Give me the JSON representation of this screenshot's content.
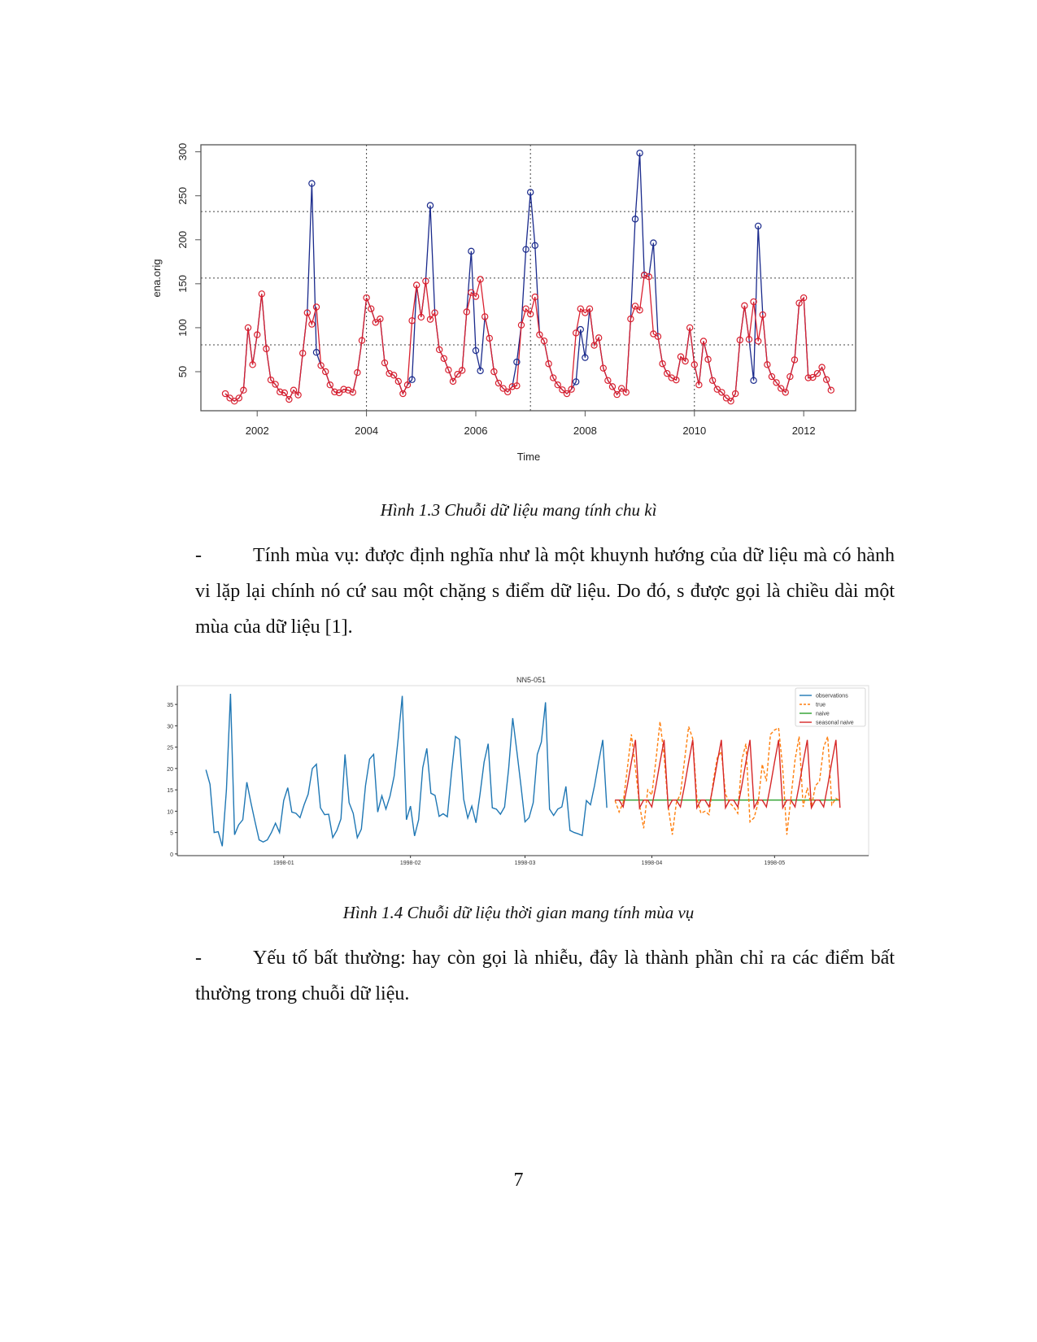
{
  "figure1": {
    "caption": "Hình 1.3 Chuỗi dữ liệu mang tính chu kì",
    "chart_data": {
      "type": "line",
      "xlabel": "Time",
      "ylabel": "ena.orig",
      "x_start": "2001-06",
      "x_frequency": "monthly",
      "xlim": [
        2000.97,
        2012.95
      ],
      "ylim": [
        5.6,
        308
      ],
      "x_ticks": [
        "2002",
        "2004",
        "2006",
        "2008",
        "2010",
        "2012"
      ],
      "y_ticks": [
        "50",
        "100",
        "150",
        "200",
        "250",
        "300"
      ],
      "reference_hlines": [
        232,
        156.5,
        80.5
      ],
      "reference_vlines": [
        2004,
        2007,
        2010
      ],
      "markers": "open circles",
      "series": [
        {
          "color": "#1a2a8c",
          "values": [
            25,
            20,
            16.5,
            20,
            29,
            100,
            58,
            92,
            138.5,
            76,
            40.6,
            35.6,
            27,
            26,
            18.5,
            29,
            23.5,
            71,
            117,
            264,
            72,
            57,
            50,
            35,
            27,
            26,
            30,
            29,
            26.5,
            49,
            85.5,
            134,
            121.5,
            106,
            110,
            60,
            48,
            46,
            39,
            25,
            35,
            41,
            148.5,
            112,
            153,
            239,
            117,
            75,
            65,
            52,
            39,
            47,
            51.5,
            118,
            187,
            74,
            51,
            112.5,
            88,
            50,
            37,
            31,
            27,
            33,
            61,
            103,
            189,
            254,
            193.5,
            92,
            85,
            59,
            43,
            35,
            29.4,
            25,
            30,
            38.5,
            98,
            66,
            121.5,
            80,
            88.5,
            54,
            40,
            33,
            24,
            31,
            26.5,
            110,
            223.5,
            298.5,
            160,
            158,
            196.5,
            90,
            59,
            48,
            43,
            40.6,
            67,
            62,
            100,
            58,
            35,
            84.7,
            64,
            40,
            30,
            26.5,
            20,
            16.5,
            25,
            86,
            125,
            86.8,
            40,
            215.6,
            114.7,
            58,
            44.4,
            37.6,
            31,
            26.5,
            44.4,
            63.5,
            128,
            134,
            43,
            43.5,
            48,
            55,
            41,
            29
          ]
        },
        {
          "color": "#d9202f",
          "values": [
            25,
            20,
            16.5,
            20,
            29,
            100,
            58,
            92,
            138.5,
            76,
            40.6,
            35.6,
            27,
            26,
            18.5,
            29,
            23.5,
            71,
            117,
            104,
            123.5,
            57,
            50,
            35,
            27,
            26,
            30,
            29,
            26.5,
            49,
            85.5,
            134,
            121.5,
            106,
            110,
            60,
            48,
            46,
            39,
            25,
            35,
            108,
            148.5,
            112,
            153,
            109.5,
            117,
            75,
            65,
            52,
            39,
            47,
            51.5,
            118,
            140,
            135.5,
            155,
            112.5,
            88,
            50,
            37,
            31,
            27,
            33,
            34,
            103,
            121.5,
            115.5,
            135,
            92,
            85,
            59,
            43,
            35,
            29.4,
            25,
            30,
            94,
            121.5,
            117,
            121.5,
            80,
            88.5,
            54,
            40,
            33,
            24,
            31,
            26.5,
            110,
            124.5,
            120,
            159.7,
            158,
            93,
            90,
            59,
            48,
            43,
            40.6,
            67,
            62,
            100,
            58,
            35,
            84.7,
            64,
            40,
            30,
            26.5,
            20,
            16.5,
            25,
            86,
            125,
            86.8,
            129.5,
            84.7,
            114.7,
            58,
            44.4,
            37.6,
            31,
            26.5,
            44.4,
            63.5,
            128,
            134,
            43,
            43.5,
            48,
            55,
            41,
            29
          ]
        }
      ]
    }
  },
  "paragraph1": {
    "bullet": "-",
    "text": "Tính mùa vụ: được định nghĩa như là một khuynh hướng của dữ liệu mà có hành vi lặp lại chính nó cứ sau một chặng s điểm dữ liệu. Do đó, s được gọi là chiều dài một mùa của dữ liệu [1]."
  },
  "figure2": {
    "caption": "Hình 1.4 Chuỗi dữ liệu thời gian mang tính mùa vụ",
    "chart_data": {
      "type": "line",
      "title": "NN5-051",
      "x_frequency": "daily",
      "xlim": [
        "1997-12-06",
        "1998-05-24"
      ],
      "ylim": [
        -0.4,
        39.4
      ],
      "x_ticks": [
        "1998-01",
        "1998-02",
        "1998-03",
        "1998-04",
        "1998-05"
      ],
      "y_ticks": [
        "0",
        "5",
        "10",
        "15",
        "20",
        "25",
        "30",
        "35"
      ],
      "legend_position": "top-right",
      "series": [
        {
          "name": "observations",
          "color": "#1f77b4",
          "style": "solid",
          "start": "1997-12-13",
          "values": [
            19.7,
            16.3,
            5,
            5.2,
            1.8,
            15,
            37.5,
            4.5,
            6.8,
            8,
            16.8,
            12,
            7.5,
            3.3,
            2.8,
            3.3,
            5,
            7.2,
            5,
            12.5,
            15.5,
            9.8,
            9.5,
            8.5,
            11.5,
            14,
            20,
            21,
            10.8,
            9.2,
            9.3,
            3.8,
            5.5,
            8.2,
            23.3,
            12,
            9.5,
            3.8,
            5.8,
            16,
            22.2,
            23.3,
            9.8,
            13.6,
            10.5,
            13.5,
            18.2,
            27,
            37,
            8,
            11.2,
            4.2,
            8,
            20.2,
            24.7,
            14.2,
            13.7,
            8.8,
            9.4,
            8.7,
            18.8,
            27.5,
            26.8,
            12.8,
            8.4,
            11.2,
            7.3,
            14,
            21.5,
            25.8,
            10.8,
            10.5,
            9.3,
            11,
            20,
            31.8,
            24,
            16,
            7.5,
            8.5,
            12,
            23.3,
            26.2,
            35.5,
            10.5,
            9,
            10.5,
            11,
            15.8,
            5.5,
            5,
            4.7,
            4.3,
            12.5,
            11.5,
            16,
            21.5,
            26.7,
            10.8
          ]
        },
        {
          "name": "true",
          "color": "#ff7f0e",
          "style": "dashed",
          "start": "1998-03-23",
          "values": [
            12.5,
            9.8,
            12,
            20,
            28,
            20,
            11.5,
            6,
            15,
            13.8,
            22,
            31,
            23,
            11,
            4.5,
            12,
            14,
            22,
            29.8,
            27,
            13,
            9.5,
            10,
            9.2,
            17,
            22.5,
            24,
            14,
            12,
            11,
            9.5,
            22,
            25.8,
            7.5,
            8.5,
            12,
            21,
            17,
            28,
            29,
            29.5,
            20,
            4.5,
            13,
            22,
            27.5,
            11,
            15.5,
            11,
            16,
            17,
            25,
            27.5,
            11.5,
            13,
            12.5
          ]
        },
        {
          "name": "naive",
          "color": "#2ca02c",
          "style": "solid",
          "start": "1998-03-23",
          "values": [
            12.6,
            12.6,
            12.6,
            12.6,
            12.6,
            12.6,
            12.6,
            12.6,
            12.6,
            12.6,
            12.6,
            12.6,
            12.6,
            12.6,
            12.6,
            12.6,
            12.6,
            12.6,
            12.6,
            12.6,
            12.6,
            12.6,
            12.6,
            12.6,
            12.6,
            12.6,
            12.6,
            12.6,
            12.6,
            12.6,
            12.6,
            12.6,
            12.6,
            12.6,
            12.6,
            12.6,
            12.6,
            12.6,
            12.6,
            12.6,
            12.6,
            12.6,
            12.6,
            12.6,
            12.6,
            12.6,
            12.6,
            12.6,
            12.6,
            12.6,
            12.6,
            12.6,
            12.6,
            12.6,
            12.6,
            12.6
          ]
        },
        {
          "name": "seasonal naive",
          "color": "#d62728",
          "style": "solid",
          "start": "1998-03-23",
          "values": [
            12.6,
            12.6,
            11,
            16,
            21.5,
            26.7,
            10.8,
            12.6,
            12.6,
            11,
            16,
            21.5,
            26.7,
            10.8,
            12.6,
            12.6,
            11,
            16,
            21.5,
            26.7,
            10.8,
            12.6,
            12.6,
            11,
            16,
            21.5,
            26.7,
            10.8,
            12.6,
            12.6,
            11,
            16,
            21.5,
            26.7,
            10.8,
            12.6,
            12.6,
            11,
            16,
            21.5,
            26.7,
            10.8,
            12.6,
            12.6,
            11,
            16,
            21.5,
            26.7,
            10.8,
            12.6,
            12.6,
            11,
            16,
            21.5,
            26.7,
            10.8
          ]
        }
      ]
    }
  },
  "paragraph2": {
    "bullet": "-",
    "text": "Yếu tố bất thường: hay còn gọi là nhiễu, đây là thành phần chỉ ra các điểm bất thường trong chuỗi dữ liệu."
  },
  "page_number": "7"
}
